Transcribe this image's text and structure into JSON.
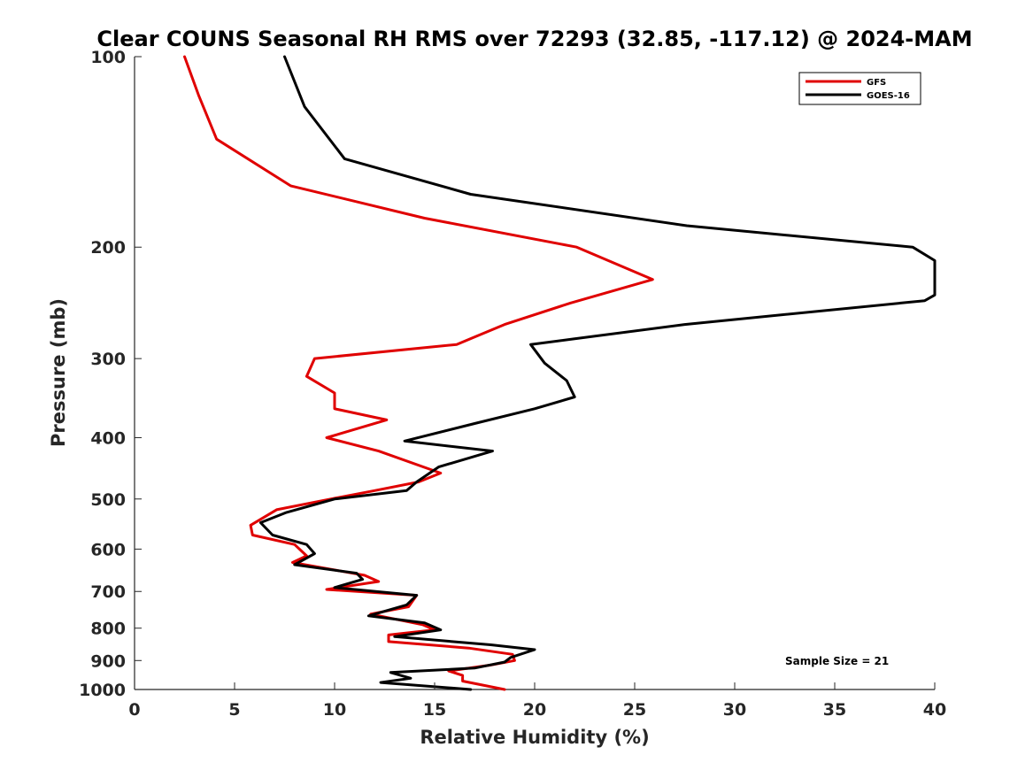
{
  "chart_data": {
    "type": "line",
    "title": "Clear COUNS Seasonal RH RMS over 72293 (32.85, -117.12) @ 2024-MAM",
    "xlabel": "Relative Humidity (%)",
    "ylabel": "Pressure (mb)",
    "xlim": [
      0,
      40
    ],
    "ylim": [
      1000,
      100
    ],
    "y_scale": "log",
    "x_ticks": [
      "0",
      "5",
      "10",
      "15",
      "20",
      "25",
      "30",
      "35",
      "40"
    ],
    "y_ticks": [
      "100",
      "200",
      "300",
      "400",
      "500",
      "600",
      "700",
      "800",
      "900",
      "1000"
    ],
    "grid": false,
    "legend_position": "top-right",
    "annotation": "Sample Size = 21",
    "series": [
      {
        "name": "GFS",
        "color": "#e00000",
        "points": [
          [
            2.5,
            100
          ],
          [
            3.2,
            115
          ],
          [
            4.1,
            135
          ],
          [
            7.8,
            160
          ],
          [
            14.5,
            180
          ],
          [
            22.1,
            200
          ],
          [
            25.9,
            225
          ],
          [
            21.8,
            245
          ],
          [
            18.5,
            265
          ],
          [
            16.1,
            285
          ],
          [
            9.0,
            300
          ],
          [
            8.6,
            320
          ],
          [
            10.0,
            340
          ],
          [
            10.0,
            360
          ],
          [
            12.6,
            375
          ],
          [
            9.6,
            400
          ],
          [
            12.2,
            420
          ],
          [
            15.3,
            455
          ],
          [
            14.2,
            470
          ],
          [
            12.0,
            485
          ],
          [
            9.8,
            500
          ],
          [
            7.1,
            520
          ],
          [
            5.8,
            550
          ],
          [
            5.9,
            570
          ],
          [
            8.0,
            590
          ],
          [
            8.6,
            615
          ],
          [
            7.9,
            630
          ],
          [
            11.5,
            660
          ],
          [
            12.2,
            675
          ],
          [
            9.6,
            695
          ],
          [
            14.1,
            710
          ],
          [
            13.7,
            740
          ],
          [
            11.8,
            760
          ],
          [
            14.4,
            790
          ],
          [
            15.0,
            805
          ],
          [
            12.7,
            820
          ],
          [
            12.7,
            840
          ],
          [
            16.7,
            860
          ],
          [
            18.9,
            880
          ],
          [
            19.0,
            900
          ],
          [
            17.8,
            915
          ],
          [
            15.7,
            935
          ],
          [
            16.4,
            950
          ],
          [
            16.4,
            970
          ],
          [
            18.5,
            1000
          ]
        ]
      },
      {
        "name": "GOES-16",
        "color": "#000000",
        "points": [
          [
            7.5,
            100
          ],
          [
            8.5,
            120
          ],
          [
            10.5,
            145
          ],
          [
            16.8,
            165
          ],
          [
            27.6,
            185
          ],
          [
            38.9,
            200
          ],
          [
            40.0,
            210
          ],
          [
            40.0,
            238
          ],
          [
            39.5,
            243
          ],
          [
            27.5,
            265
          ],
          [
            19.8,
            285
          ],
          [
            20.5,
            305
          ],
          [
            21.6,
            325
          ],
          [
            22.0,
            345
          ],
          [
            20.0,
            360
          ],
          [
            17.0,
            380
          ],
          [
            13.5,
            405
          ],
          [
            17.9,
            420
          ],
          [
            15.2,
            445
          ],
          [
            14.1,
            470
          ],
          [
            13.6,
            485
          ],
          [
            10.0,
            500
          ],
          [
            7.6,
            525
          ],
          [
            6.3,
            545
          ],
          [
            6.9,
            570
          ],
          [
            8.6,
            590
          ],
          [
            9.0,
            610
          ],
          [
            8.0,
            635
          ],
          [
            11.1,
            655
          ],
          [
            11.4,
            670
          ],
          [
            10.0,
            690
          ],
          [
            14.1,
            710
          ],
          [
            13.6,
            735
          ],
          [
            11.7,
            765
          ],
          [
            14.5,
            785
          ],
          [
            15.3,
            805
          ],
          [
            13.0,
            825
          ],
          [
            17.8,
            850
          ],
          [
            20.0,
            865
          ],
          [
            18.8,
            890
          ],
          [
            18.5,
            905
          ],
          [
            17.0,
            925
          ],
          [
            12.8,
            940
          ],
          [
            13.8,
            960
          ],
          [
            12.3,
            975
          ],
          [
            16.8,
            1000
          ]
        ]
      }
    ]
  }
}
